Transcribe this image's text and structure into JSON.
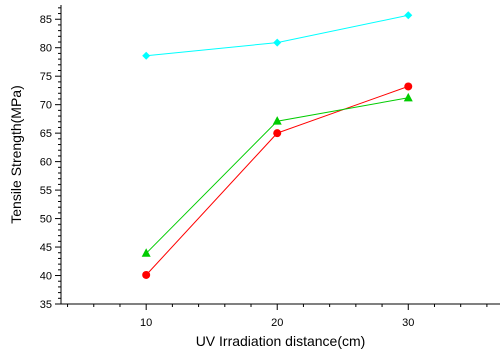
{
  "chart_data": {
    "type": "line",
    "title": "",
    "xlabel": "UV Irradiation distance(cm)",
    "ylabel": "Tensile Strength(MPa)",
    "x": [
      10,
      20,
      30
    ],
    "xlim": [
      3.5,
      37
    ],
    "ylim": [
      35,
      87.5
    ],
    "x_ticks": [
      "10",
      "20",
      "30"
    ],
    "x_tick_values": [
      10,
      20,
      30
    ],
    "x_minor_step": 2,
    "y_ticks": [
      "35",
      "40",
      "45",
      "50",
      "55",
      "60",
      "65",
      "70",
      "75",
      "80",
      "85"
    ],
    "y_tick_values": [
      35,
      40,
      45,
      50,
      55,
      60,
      65,
      70,
      75,
      80,
      85
    ],
    "y_minor_step": 1,
    "grid": false,
    "legend": "none",
    "series": [
      {
        "color": "#00ffff",
        "marker": "diamond",
        "values": [
          78.6,
          80.9,
          85.7
        ]
      },
      {
        "color": "#ff0000",
        "marker": "circle",
        "values": [
          40.1,
          65.0,
          73.2
        ]
      },
      {
        "color": "#00cc00",
        "marker": "triangle",
        "values": [
          43.9,
          67.1,
          71.2
        ]
      }
    ]
  }
}
